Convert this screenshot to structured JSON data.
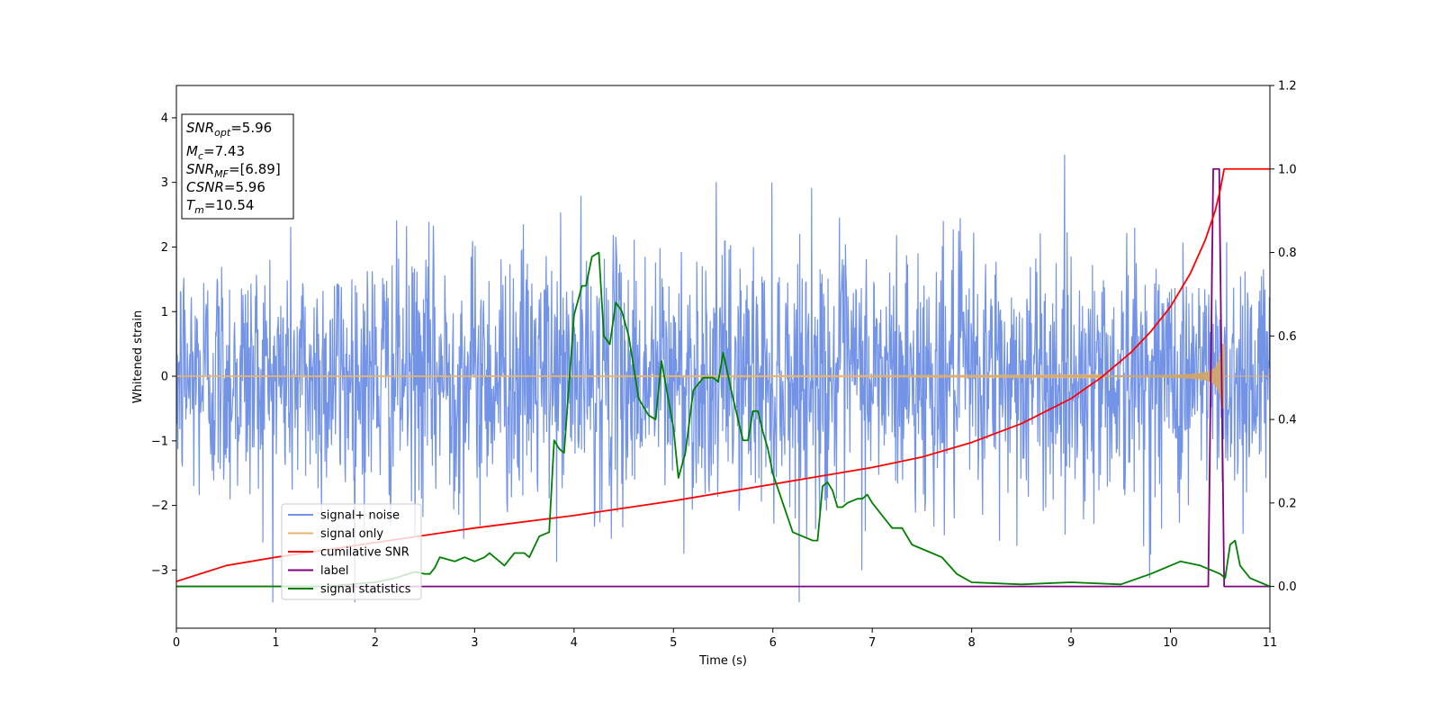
{
  "chart_data": {
    "type": "line",
    "xlabel": "Time (s)",
    "ylabel": "Whitened strain",
    "xlim": [
      0,
      11
    ],
    "ylim_left": [
      -3.9,
      4.5
    ],
    "ylim_right": [
      -0.1,
      1.2
    ],
    "xticks": [
      "0",
      "1",
      "2",
      "3",
      "4",
      "5",
      "6",
      "7",
      "8",
      "9",
      "10",
      "11"
    ],
    "yticks_left": [
      "4",
      "3",
      "2",
      "1",
      "0",
      "−1",
      "−2",
      "−3"
    ],
    "yticks_right": [
      "1.2",
      "1.0",
      "0.8",
      "0.6",
      "0.4",
      "0.2",
      "0.0"
    ],
    "grid": false,
    "legend_position": "lower-left",
    "annotation": {
      "snr_opt": {
        "main": "SNR",
        "sub": "opt",
        "value": "=5.96"
      },
      "mc": {
        "main": "M",
        "sub": "c",
        "value": "=7.43"
      },
      "snr_mf": {
        "main": "SNR",
        "sub": "MF",
        "value": "=[6.89]"
      },
      "csnr": {
        "main": "CSNR",
        "value": "=5.96"
      },
      "tm": {
        "main": "T",
        "sub": "m",
        "value": "=10.54"
      }
    },
    "series": [
      {
        "name": "signal+ noise",
        "axis": "left",
        "color": "#7393e6",
        "kind": "noise",
        "amplitude_std": 1.0,
        "t_range": [
          0,
          11
        ]
      },
      {
        "name": "signal only",
        "axis": "left",
        "color": "#e8b46b",
        "kind": "chirp",
        "t_coalescence": 10.54,
        "peak_amplitude": 0.5
      },
      {
        "name": "cumilative SNR",
        "axis": "right",
        "color": "#ff0000",
        "x": [
          0,
          0.5,
          1,
          2,
          3,
          4,
          5,
          6,
          7,
          7.5,
          8,
          8.5,
          9,
          9.3,
          9.6,
          9.8,
          10,
          10.2,
          10.35,
          10.45,
          10.5,
          10.54,
          10.6,
          11
        ],
        "y": [
          0.012,
          0.05,
          0.07,
          0.105,
          0.14,
          0.17,
          0.205,
          0.245,
          0.285,
          0.31,
          0.345,
          0.39,
          0.45,
          0.5,
          0.56,
          0.61,
          0.67,
          0.75,
          0.83,
          0.9,
          0.95,
          1.0,
          1.0,
          1.0
        ]
      },
      {
        "name": "label",
        "axis": "right",
        "color": "#800080",
        "x": [
          0,
          10.38,
          10.43,
          10.49,
          10.54,
          11
        ],
        "y": [
          0,
          0,
          1.0,
          1.0,
          0,
          0
        ]
      },
      {
        "name": "signal statistics",
        "axis": "right",
        "color": "#008000",
        "x": [
          0,
          0.5,
          1,
          1.5,
          2,
          2.2,
          2.4,
          2.5,
          2.55,
          2.6,
          2.65,
          2.8,
          2.9,
          3.0,
          3.1,
          3.15,
          3.3,
          3.4,
          3.5,
          3.55,
          3.65,
          3.75,
          3.8,
          3.85,
          3.9,
          4.0,
          4.08,
          4.12,
          4.18,
          4.25,
          4.3,
          4.36,
          4.42,
          4.48,
          4.55,
          4.65,
          4.75,
          4.82,
          4.88,
          5.0,
          5.05,
          5.12,
          5.2,
          5.3,
          5.4,
          5.45,
          5.5,
          5.6,
          5.7,
          5.75,
          5.8,
          5.85,
          5.9,
          5.95,
          6.0,
          6.1,
          6.2,
          6.3,
          6.4,
          6.45,
          6.5,
          6.55,
          6.6,
          6.65,
          6.7,
          6.75,
          6.85,
          6.9,
          6.95,
          7.0,
          7.1,
          7.2,
          7.3,
          7.4,
          7.6,
          7.7,
          7.85,
          8.0,
          8.5,
          9.0,
          9.5,
          9.8,
          10.0,
          10.1,
          10.3,
          10.4,
          10.5,
          10.55,
          10.6,
          10.65,
          10.7,
          10.8,
          11
        ],
        "y": [
          0,
          0,
          0,
          0,
          0.01,
          0.02,
          0.035,
          0.03,
          0.03,
          0.045,
          0.07,
          0.06,
          0.07,
          0.06,
          0.07,
          0.08,
          0.05,
          0.08,
          0.08,
          0.07,
          0.12,
          0.13,
          0.35,
          0.33,
          0.32,
          0.65,
          0.72,
          0.72,
          0.79,
          0.8,
          0.6,
          0.58,
          0.68,
          0.66,
          0.6,
          0.45,
          0.41,
          0.4,
          0.54,
          0.38,
          0.26,
          0.32,
          0.47,
          0.5,
          0.5,
          0.49,
          0.56,
          0.45,
          0.35,
          0.35,
          0.42,
          0.42,
          0.37,
          0.33,
          0.27,
          0.2,
          0.13,
          0.12,
          0.11,
          0.11,
          0.24,
          0.25,
          0.23,
          0.19,
          0.19,
          0.2,
          0.21,
          0.21,
          0.22,
          0.2,
          0.17,
          0.14,
          0.14,
          0.1,
          0.08,
          0.07,
          0.03,
          0.01,
          0.005,
          0.01,
          0.005,
          0.03,
          0.05,
          0.06,
          0.05,
          0.04,
          0.03,
          0.02,
          0.1,
          0.11,
          0.05,
          0.02,
          0.0
        ]
      }
    ]
  }
}
